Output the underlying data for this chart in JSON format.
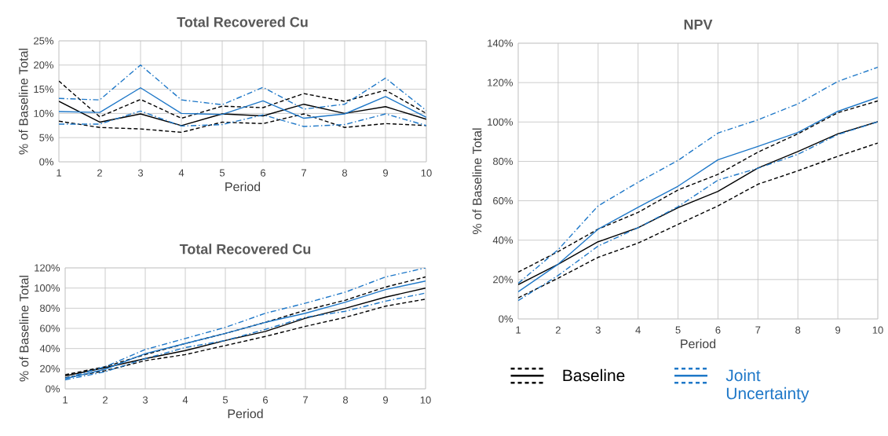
{
  "chart_data": [
    {
      "type": "line",
      "title": "Total Recovered Cu",
      "xlabel": "Period",
      "ylabel": "% of Baseline Total",
      "x": [
        1,
        2,
        3,
        4,
        5,
        6,
        7,
        8,
        9,
        10
      ],
      "xlim": [
        1,
        10
      ],
      "xticks": [
        1,
        2,
        3,
        4,
        5,
        6,
        7,
        8,
        9,
        10
      ],
      "ylim": [
        0,
        25
      ],
      "yticks": [
        {
          "value": 0,
          "label": "0%"
        },
        {
          "value": 5,
          "label": "5%"
        },
        {
          "value": 10,
          "label": "10%"
        },
        {
          "value": 15,
          "label": "15%"
        },
        {
          "value": 20,
          "label": "20%"
        },
        {
          "value": 25,
          "label": "25%"
        }
      ],
      "grid": true,
      "series": [
        {
          "color": "#000000",
          "line_style": "dashed",
          "values": [
            16.7,
            9.3,
            12.9,
            9.0,
            11.5,
            11.2,
            14.1,
            12.5,
            14.8,
            10.0
          ]
        },
        {
          "color": "#000000",
          "line_style": "solid",
          "values": [
            12.5,
            8.2,
            9.9,
            7.5,
            9.9,
            9.5,
            11.9,
            10.0,
            11.4,
            8.8
          ]
        },
        {
          "color": "#000000",
          "line_style": "dashed",
          "values": [
            8.4,
            7.1,
            6.8,
            6.1,
            8.2,
            7.9,
            9.9,
            7.1,
            7.9,
            7.5
          ]
        },
        {
          "color": "#1f78c8",
          "line_style": "dashdotted",
          "values": [
            13.1,
            12.8,
            20.0,
            12.8,
            11.8,
            15.4,
            10.9,
            11.9,
            17.3,
            10.6
          ]
        },
        {
          "color": "#1f78c8",
          "line_style": "solid",
          "values": [
            10.4,
            10.2,
            15.3,
            10.0,
            9.8,
            12.6,
            9.0,
            9.9,
            13.5,
            9.2
          ]
        },
        {
          "color": "#1f78c8",
          "line_style": "dashdotted",
          "values": [
            7.8,
            7.8,
            10.5,
            7.4,
            7.7,
            9.7,
            7.3,
            7.7,
            9.9,
            7.5
          ]
        }
      ]
    },
    {
      "type": "line",
      "title": "Total Recovered Cu",
      "xlabel": "Period",
      "ylabel": "% of Baseline Total",
      "x": [
        1,
        2,
        3,
        4,
        5,
        6,
        7,
        8,
        9,
        10
      ],
      "xlim": [
        1,
        10
      ],
      "xticks": [
        1,
        2,
        3,
        4,
        5,
        6,
        7,
        8,
        9,
        10
      ],
      "ylim": [
        0,
        120
      ],
      "yticks": [
        {
          "value": 0,
          "label": "0%"
        },
        {
          "value": 20,
          "label": "20%"
        },
        {
          "value": 40,
          "label": "40%"
        },
        {
          "value": 60,
          "label": "60%"
        },
        {
          "value": 80,
          "label": "80%"
        },
        {
          "value": 100,
          "label": "100%"
        },
        {
          "value": 120,
          "label": "120%"
        }
      ],
      "grid": true,
      "series": [
        {
          "color": "#000000",
          "line_style": "dashed",
          "values": [
            14,
            22,
            34,
            45,
            55,
            66,
            78,
            88,
            101,
            111
          ]
        },
        {
          "color": "#000000",
          "line_style": "solid",
          "values": [
            12.8,
            21,
            30,
            38,
            48,
            57,
            70,
            80,
            91,
            100
          ]
        },
        {
          "color": "#000000",
          "line_style": "dashed",
          "values": [
            11,
            18,
            28,
            34,
            43,
            52,
            62,
            71,
            82,
            89
          ]
        },
        {
          "color": "#1f78c8",
          "line_style": "dashdotted",
          "values": [
            10.5,
            22,
            39,
            50,
            61,
            75,
            85,
            96,
            111,
            120
          ]
        },
        {
          "color": "#1f78c8",
          "line_style": "solid",
          "values": [
            10,
            19.5,
            35,
            45,
            55,
            66,
            75,
            86,
            98.5,
            107
          ]
        },
        {
          "color": "#1f78c8",
          "line_style": "dashdotted",
          "values": [
            9,
            17,
            30,
            41,
            48,
            59,
            71,
            77,
            87,
            95
          ]
        }
      ]
    },
    {
      "type": "line",
      "title": "NPV",
      "xlabel": "Period",
      "ylabel": "% of Baseline Total",
      "x": [
        1,
        2,
        3,
        4,
        5,
        6,
        7,
        8,
        9,
        10
      ],
      "xlim": [
        1,
        10
      ],
      "xticks": [
        1,
        2,
        3,
        4,
        5,
        6,
        7,
        8,
        9,
        10
      ],
      "ylim": [
        0,
        140
      ],
      "yticks": [
        {
          "value": 0,
          "label": "0%"
        },
        {
          "value": 20,
          "label": "20%"
        },
        {
          "value": 40,
          "label": "40%"
        },
        {
          "value": 60,
          "label": "60%"
        },
        {
          "value": 80,
          "label": "80%"
        },
        {
          "value": 100,
          "label": "100%"
        },
        {
          "value": 120,
          "label": "120%"
        },
        {
          "value": 140,
          "label": "140%"
        }
      ],
      "grid": true,
      "legend": "bottom",
      "series": [
        {
          "color": "#000000",
          "line_style": "dashed",
          "values": [
            23.8,
            34.2,
            45.6,
            54.1,
            65.5,
            73.4,
            84.7,
            94.0,
            104.7,
            110.7
          ]
        },
        {
          "name": "Baseline",
          "color": "#000000",
          "line_style": "solid",
          "values": [
            17.4,
            27.8,
            39.2,
            46.3,
            56.5,
            64.8,
            76.6,
            85.0,
            94.0,
            100.1
          ]
        },
        {
          "color": "#000000",
          "line_style": "dashed",
          "values": [
            10.7,
            20.7,
            31.3,
            38.5,
            48.0,
            57.4,
            68.4,
            75.2,
            82.6,
            89.3
          ]
        },
        {
          "color": "#1f78c8",
          "line_style": "dashdotted",
          "values": [
            18.1,
            35.2,
            57.4,
            69.4,
            80.5,
            94.4,
            101.1,
            109.2,
            120.6,
            127.8
          ]
        },
        {
          "name": "Joint Uncertainty",
          "color": "#1f78c8",
          "line_style": "solid",
          "values": [
            13.8,
            27.8,
            45.6,
            56.7,
            67.4,
            80.8,
            87.6,
            94.7,
            105.4,
            112.5
          ]
        },
        {
          "color": "#1f78c8",
          "line_style": "dashdotted",
          "values": [
            9.3,
            22.1,
            37.0,
            46.3,
            57.0,
            70.5,
            76.5,
            83.6,
            93.6,
            100.1
          ]
        }
      ]
    }
  ]
}
